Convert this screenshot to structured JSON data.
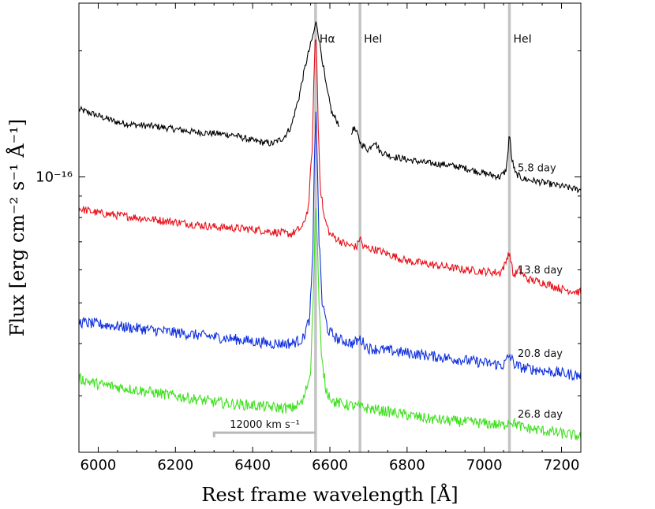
{
  "chart_data": {
    "type": "line",
    "xlabel": "Rest frame wavelength [Å]",
    "ylabel": "Flux [erg cm⁻² s⁻¹ Å⁻¹]",
    "xlim": [
      5950,
      7250
    ],
    "x_ticks": [
      6000,
      6200,
      6400,
      6600,
      6800,
      7000,
      7200
    ],
    "y_tick_label": "10⁻¹⁶",
    "yscale": "log",
    "ylim": [
      0.22,
      2.6
    ],
    "y_labeled_tick": 1.0,
    "y_minor_ticks": [
      0.3,
      0.4,
      0.5,
      0.6,
      0.7,
      0.8,
      0.9,
      2.0
    ],
    "line_markers": [
      {
        "label": "Hα",
        "wavelength": 6563
      },
      {
        "label": "HeI",
        "wavelength": 6678
      },
      {
        "label": "HeI",
        "wavelength": 7065
      }
    ],
    "velocity_bar": {
      "label": "12000 km s⁻¹",
      "x_start": 6300,
      "x_end": 6563,
      "y": 0.245
    },
    "series": [
      {
        "name": "5.8 day",
        "color": "#000000",
        "gaps": [
          [
            6625,
            6655
          ]
        ],
        "x": [
          5950,
          6000,
          6050,
          6100,
          6150,
          6200,
          6250,
          6300,
          6350,
          6400,
          6450,
          6480,
          6500,
          6520,
          6540,
          6555,
          6565,
          6575,
          6590,
          6605,
          6625,
          6655,
          6660,
          6670,
          6680,
          6690,
          6700,
          6715,
          6730,
          6760,
          6800,
          6850,
          6900,
          6950,
          7000,
          7040,
          7055,
          7060,
          7065,
          7070,
          7080,
          7100,
          7150,
          7200,
          7250
        ],
        "y": [
          1.45,
          1.4,
          1.35,
          1.33,
          1.32,
          1.3,
          1.28,
          1.27,
          1.26,
          1.22,
          1.2,
          1.24,
          1.32,
          1.55,
          1.9,
          2.15,
          2.35,
          2.05,
          1.65,
          1.42,
          1.33,
          1.22,
          1.32,
          1.27,
          1.2,
          1.18,
          1.16,
          1.22,
          1.15,
          1.12,
          1.1,
          1.08,
          1.07,
          1.05,
          1.02,
          1.0,
          1.03,
          1.1,
          1.28,
          1.12,
          1.02,
          0.99,
          0.97,
          0.95,
          0.93
        ]
      },
      {
        "name": "13.8 day",
        "color": "#e8101a",
        "x": [
          5950,
          6000,
          6050,
          6100,
          6150,
          6200,
          6250,
          6300,
          6350,
          6400,
          6450,
          6500,
          6530,
          6545,
          6555,
          6560,
          6563,
          6566,
          6570,
          6575,
          6585,
          6600,
          6640,
          6670,
          6678,
          6686,
          6720,
          6760,
          6800,
          6850,
          6900,
          6950,
          7000,
          7040,
          7055,
          7062,
          7068,
          7075,
          7090,
          7110,
          7150,
          7200,
          7250
        ],
        "y": [
          0.84,
          0.82,
          0.81,
          0.8,
          0.79,
          0.78,
          0.77,
          0.76,
          0.755,
          0.75,
          0.74,
          0.73,
          0.76,
          0.85,
          1.2,
          1.9,
          2.22,
          1.9,
          1.3,
          0.95,
          0.8,
          0.73,
          0.69,
          0.68,
          0.72,
          0.68,
          0.67,
          0.65,
          0.63,
          0.62,
          0.61,
          0.6,
          0.595,
          0.59,
          0.62,
          0.66,
          0.64,
          0.58,
          0.6,
          0.57,
          0.56,
          0.54,
          0.53
        ]
      },
      {
        "name": "20.8 day",
        "color": "#1030e0",
        "x": [
          5950,
          6000,
          6050,
          6100,
          6150,
          6200,
          6250,
          6300,
          6350,
          6400,
          6450,
          6500,
          6530,
          6548,
          6556,
          6561,
          6564,
          6567,
          6572,
          6580,
          6595,
          6620,
          6660,
          6678,
          6700,
          6750,
          6800,
          6850,
          6900,
          6950,
          7000,
          7050,
          7065,
          7080,
          7100,
          7150,
          7200,
          7250
        ],
        "y": [
          0.45,
          0.445,
          0.44,
          0.435,
          0.43,
          0.425,
          0.42,
          0.415,
          0.41,
          0.405,
          0.4,
          0.4,
          0.41,
          0.46,
          0.65,
          1.2,
          1.45,
          1.1,
          0.7,
          0.5,
          0.43,
          0.41,
          0.4,
          0.41,
          0.39,
          0.385,
          0.38,
          0.375,
          0.37,
          0.365,
          0.36,
          0.355,
          0.375,
          0.355,
          0.35,
          0.345,
          0.34,
          0.335
        ]
      },
      {
        "name": "26.8 day",
        "color": "#40e020",
        "x": [
          5950,
          6000,
          6050,
          6100,
          6150,
          6200,
          6250,
          6300,
          6350,
          6400,
          6450,
          6500,
          6530,
          6550,
          6558,
          6563,
          6567,
          6571,
          6578,
          6590,
          6610,
          6650,
          6700,
          6750,
          6800,
          6850,
          6900,
          6950,
          7000,
          7050,
          7065,
          7100,
          7150,
          7200,
          7250
        ],
        "y": [
          0.33,
          0.32,
          0.315,
          0.31,
          0.305,
          0.3,
          0.295,
          0.29,
          0.287,
          0.285,
          0.282,
          0.28,
          0.29,
          0.34,
          0.55,
          0.85,
          0.75,
          0.52,
          0.37,
          0.31,
          0.29,
          0.285,
          0.28,
          0.275,
          0.27,
          0.265,
          0.262,
          0.26,
          0.258,
          0.255,
          0.262,
          0.252,
          0.248,
          0.244,
          0.24
        ]
      }
    ]
  }
}
